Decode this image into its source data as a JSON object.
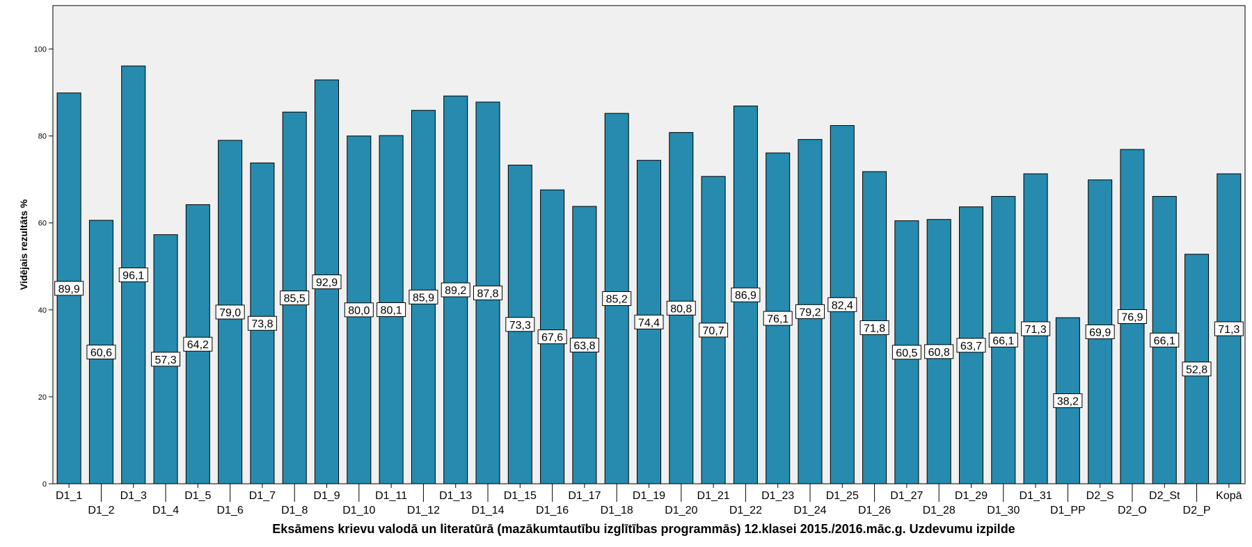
{
  "chart_data": {
    "type": "bar",
    "xlabel": "Eksāmens krievu valodā un literatūrā (mazākumtautību izglītības programmās) 12.klasei 2015./2016.māc.g. Uzdevumu izpilde",
    "ylabel": "Vidējais rezultāts %",
    "ylim": [
      0,
      110
    ],
    "yticks": [
      "0",
      "20",
      "40",
      "60",
      "80",
      "100"
    ],
    "grid": false,
    "bar_color": "#268bae",
    "plot_background": "#f0f0f0",
    "categories": [
      "D1_1",
      "D1_2",
      "D1_3",
      "D1_4",
      "D1_5",
      "D1_6",
      "D1_7",
      "D1_8",
      "D1_9",
      "D1_10",
      "D1_11",
      "D1_12",
      "D1_13",
      "D1_14",
      "D1_15",
      "D1_16",
      "D1_17",
      "D1_18",
      "D1_19",
      "D1_20",
      "D1_21",
      "D1_22",
      "D1_23",
      "D1_24",
      "D1_25",
      "D1_26",
      "D1_27",
      "D1_28",
      "D1_29",
      "D1_30",
      "D1_31",
      "D1_PP",
      "D2_S",
      "D2_O",
      "D2_St",
      "D2_P",
      "Kopā"
    ],
    "values": [
      89.9,
      60.6,
      96.1,
      57.3,
      64.2,
      79.0,
      73.8,
      85.5,
      92.9,
      80.0,
      80.1,
      85.9,
      89.2,
      87.8,
      73.3,
      67.6,
      63.8,
      85.2,
      74.4,
      80.8,
      70.7,
      86.9,
      76.1,
      79.2,
      82.4,
      71.8,
      60.5,
      60.8,
      63.7,
      66.1,
      71.3,
      38.2,
      69.9,
      76.9,
      66.1,
      52.8,
      71.3
    ],
    "value_labels": [
      "89,9",
      "60,6",
      "96,1",
      "57,3",
      "64,2",
      "79,0",
      "73,8",
      "85,5",
      "92,9",
      "80,0",
      "80,1",
      "85,9",
      "89,2",
      "87,8",
      "73,3",
      "67,6",
      "63,8",
      "85,2",
      "74,4",
      "80,8",
      "70,7",
      "86,9",
      "76,1",
      "79,2",
      "82,4",
      "71,8",
      "60,5",
      "60,8",
      "63,7",
      "66,1",
      "71,3",
      "38,2",
      "69,9",
      "76,9",
      "66,1",
      "52,8",
      "71,3"
    ]
  }
}
